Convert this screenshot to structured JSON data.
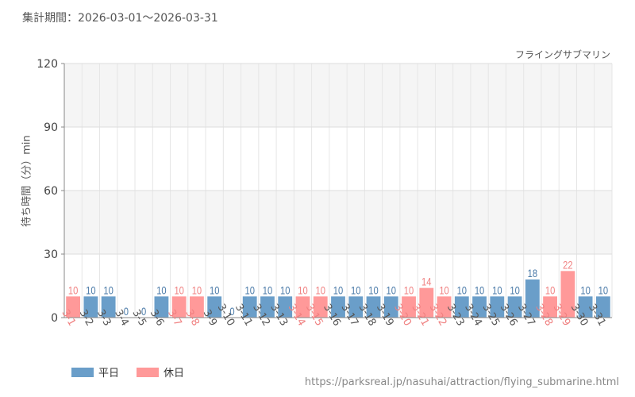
{
  "header": {
    "period": "集計期間：2026-03-01～2026-03-31"
  },
  "source": "https://parksreal.jp/nasuhai/attraction/flying_submarine.html",
  "chart_data": {
    "type": "bar",
    "title": "フライングサブマリン",
    "ylabel": "待ち時間（分）min",
    "xlabel": "",
    "ylim": [
      0,
      120
    ],
    "yticks": [
      0,
      30,
      60,
      90,
      120
    ],
    "grid": true,
    "legend_position": "bottom-left",
    "categories": [
      "3-1",
      "3-2",
      "3-3",
      "3-4",
      "3-5",
      "3-6",
      "3-7",
      "3-8",
      "3-9",
      "3-10",
      "3-11",
      "3-12",
      "3-13",
      "3-14",
      "3-15",
      "3-16",
      "3-17",
      "3-18",
      "3-19",
      "3-20",
      "3-21",
      "3-22",
      "3-23",
      "3-24",
      "3-25",
      "3-26",
      "3-27",
      "3-28",
      "3-29",
      "3-30",
      "3-31"
    ],
    "values": [
      10,
      10,
      10,
      0,
      0,
      10,
      10,
      10,
      10,
      0,
      10,
      10,
      10,
      10,
      10,
      10,
      10,
      10,
      10,
      10,
      14,
      10,
      10,
      10,
      10,
      10,
      18,
      10,
      22,
      10,
      10
    ],
    "day_type": [
      "holiday",
      "weekday",
      "weekday",
      "weekday",
      "weekday",
      "weekday",
      "holiday",
      "holiday",
      "weekday",
      "weekday",
      "weekday",
      "weekday",
      "weekday",
      "holiday",
      "holiday",
      "weekday",
      "weekday",
      "weekday",
      "weekday",
      "holiday",
      "holiday",
      "holiday",
      "weekday",
      "weekday",
      "weekday",
      "weekday",
      "weekday",
      "holiday",
      "holiday",
      "weekday",
      "weekday"
    ],
    "legend": [
      {
        "key": "weekday",
        "name": "平日",
        "color": "#6a9ec9",
        "label_color": "#4a7aa8"
      },
      {
        "key": "holiday",
        "name": "休日",
        "color": "#ff9999",
        "label_color": "#f08080"
      }
    ]
  }
}
